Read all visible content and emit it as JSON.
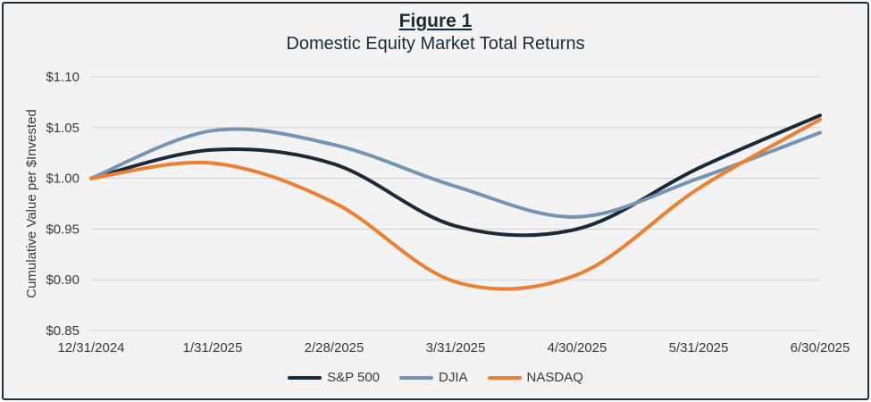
{
  "figure": {
    "label": "Figure 1",
    "subtitle": "Domestic Equity Market Total Returns"
  },
  "chart_data": {
    "type": "line",
    "title": "Domestic Equity Market Total Returns",
    "ylabel": "Cumulative Value per $Invested",
    "xlabel": "",
    "ylim": [
      0.85,
      1.1
    ],
    "y_ticks": [
      "$1.10",
      "$1.05",
      "$1.00",
      "$0.95",
      "$0.90",
      "$0.85"
    ],
    "y_tick_values": [
      1.1,
      1.05,
      1.0,
      0.95,
      0.9,
      0.85
    ],
    "categories": [
      "12/31/2024",
      "1/31/2025",
      "2/28/2025",
      "3/31/2025",
      "4/30/2025",
      "5/31/2025",
      "6/30/2025"
    ],
    "grid": true,
    "legend_position": "bottom",
    "series": [
      {
        "name": "S&P 500",
        "color": "#1a2a3a",
        "values": [
          1.0,
          1.028,
          1.014,
          0.953,
          0.95,
          1.01,
          1.062
        ]
      },
      {
        "name": "DJIA",
        "color": "#7394b3",
        "values": [
          1.0,
          1.047,
          1.033,
          0.992,
          0.962,
          1.0,
          1.045
        ]
      },
      {
        "name": "NASDAQ",
        "color": "#ee7f30",
        "values": [
          1.0,
          1.015,
          0.976,
          0.898,
          0.905,
          0.99,
          1.058
        ]
      }
    ]
  }
}
